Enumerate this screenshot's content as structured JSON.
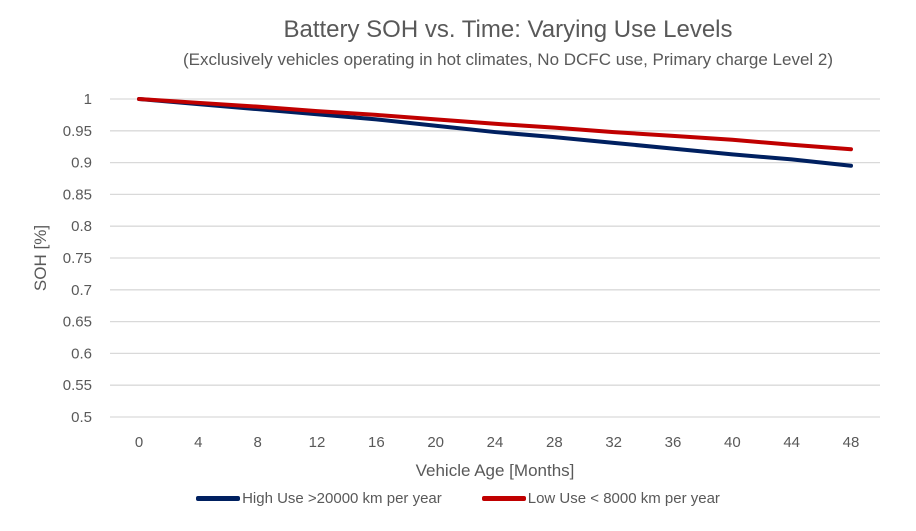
{
  "chart_data": {
    "type": "line",
    "title": "Battery SOH vs. Time: Varying Use Levels",
    "subtitle": "(Exclusively vehicles operating in hot climates, No DCFC use, Primary charge Level 2)",
    "xlabel": "Vehicle Age [Months]",
    "ylabel": "SOH [%]",
    "x": [
      0,
      4,
      8,
      12,
      16,
      20,
      24,
      28,
      32,
      36,
      40,
      44,
      48
    ],
    "xticks": [
      "0",
      "4",
      "8",
      "12",
      "16",
      "20",
      "24",
      "28",
      "32",
      "36",
      "40",
      "44",
      "48"
    ],
    "yticks": [
      "1",
      "0.95",
      "0.9",
      "0.85",
      "0.8",
      "0.75",
      "0.7",
      "0.65",
      "0.6",
      "0.55",
      "0.5"
    ],
    "xlim": [
      0,
      48
    ],
    "ylim": [
      0.5,
      1
    ],
    "grid": "horizontal",
    "legend_position": "bottom",
    "series": [
      {
        "name": "High Use >20000 km per year",
        "color": "#002060",
        "values": [
          1,
          0.992,
          0.984,
          0.976,
          0.968,
          0.958,
          0.948,
          0.94,
          0.931,
          0.922,
          0.913,
          0.905,
          0.895
        ]
      },
      {
        "name": "Low Use < 8000 km per year",
        "color": "#C00000",
        "values": [
          1,
          0.994,
          0.988,
          0.981,
          0.975,
          0.968,
          0.961,
          0.955,
          0.948,
          0.942,
          0.936,
          0.928,
          0.921
        ]
      }
    ]
  }
}
